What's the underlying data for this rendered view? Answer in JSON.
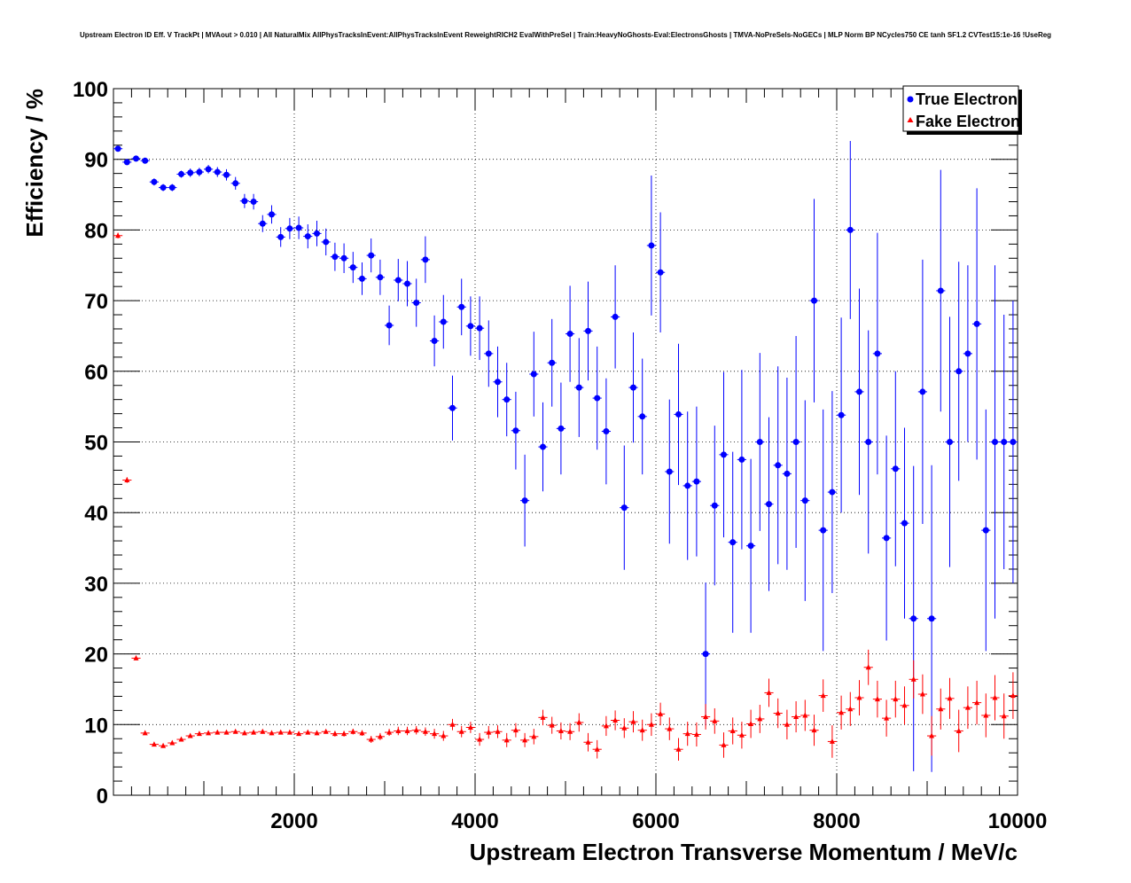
{
  "chart_data": {
    "type": "scatter",
    "title": "Upstream Electron ID Eff. V TrackPt | MVAout > 0.010 | All NaturalMix AllPhysTracksInEvent:AllPhysTracksInEvent ReweightRICH2 EvalWithPreSel | Train:HeavyNoGhosts-Eval:ElectronsGhosts | TMVA-NoPreSels-NoGECs | MLP Norm BP NCycles750 CE tanh SF1.2 CVTest15:1e-16 !UseReg",
    "xlabel": "Upstream Electron Transverse Momentum / MeV/c",
    "ylabel": "Efficiency / %",
    "xlim": [
      0,
      10000
    ],
    "ylim": [
      0,
      100
    ],
    "x_ticks": [
      2000,
      4000,
      6000,
      8000,
      10000
    ],
    "y_ticks": [
      0,
      10,
      20,
      30,
      40,
      50,
      60,
      70,
      80,
      90,
      100
    ],
    "grid": true,
    "legend_position": "top-right",
    "x": [
      50,
      150,
      250,
      350,
      450,
      550,
      650,
      750,
      850,
      950,
      1050,
      1150,
      1250,
      1350,
      1450,
      1550,
      1650,
      1750,
      1850,
      1950,
      2050,
      2150,
      2250,
      2350,
      2450,
      2550,
      2650,
      2750,
      2850,
      2950,
      3050,
      3150,
      3250,
      3350,
      3450,
      3550,
      3650,
      3750,
      3850,
      3950,
      4050,
      4150,
      4250,
      4350,
      4450,
      4550,
      4650,
      4750,
      4850,
      4950,
      5050,
      5150,
      5250,
      5350,
      5450,
      5550,
      5650,
      5750,
      5850,
      5950,
      6050,
      6150,
      6250,
      6350,
      6450,
      6550,
      6650,
      6750,
      6850,
      6950,
      7050,
      7150,
      7250,
      7350,
      7450,
      7550,
      7650,
      7750,
      7850,
      7950,
      8050,
      8150,
      8250,
      8350,
      8450,
      8550,
      8650,
      8750,
      8850,
      8950,
      9050,
      9150,
      9250,
      9350,
      9450,
      9550,
      9650,
      9750,
      9850,
      9950
    ],
    "series": [
      {
        "name": "True Electron",
        "color": "#0000ff",
        "marker": "circle",
        "values": [
          91.5,
          89.6,
          90.1,
          89.8,
          86.8,
          86.0,
          86.0,
          87.9,
          88.1,
          88.2,
          88.6,
          88.2,
          87.8,
          86.6,
          84.1,
          84.0,
          80.9,
          82.2,
          79.0,
          80.2,
          80.3,
          79.1,
          79.5,
          78.3,
          76.2,
          76.0,
          74.7,
          73.1,
          76.4,
          73.3,
          66.5,
          72.9,
          72.4,
          69.7,
          75.8,
          64.3,
          67.0,
          54.8,
          69.1,
          66.4,
          66.1,
          62.5,
          58.5,
          56.0,
          51.6,
          41.7,
          59.6,
          49.3,
          61.2,
          51.9,
          65.3,
          57.7,
          65.7,
          56.2,
          51.5,
          67.7,
          40.7,
          57.7,
          53.6,
          77.8,
          74.0,
          45.8,
          53.9,
          43.8,
          44.4,
          20.0,
          41.0,
          48.2,
          35.8,
          47.5,
          35.3,
          50.0,
          41.2,
          46.7,
          45.5,
          50.0,
          41.7,
          70.0,
          37.5,
          42.9,
          53.8,
          80.0,
          57.1,
          50.0,
          62.5,
          36.4,
          46.2,
          38.5,
          25.0,
          57.1,
          25.0,
          71.4,
          50.0,
          60.0,
          62.5,
          66.7,
          37.5,
          50.0,
          50.0,
          50.0
        ],
        "errors": [
          0.4,
          0.4,
          0.4,
          0.4,
          0.5,
          0.5,
          0.5,
          0.5,
          0.6,
          0.6,
          0.6,
          0.7,
          0.8,
          0.9,
          1.0,
          1.1,
          1.2,
          1.3,
          1.4,
          1.5,
          1.6,
          1.7,
          1.8,
          1.9,
          2.0,
          2.1,
          2.2,
          2.3,
          2.4,
          2.5,
          2.8,
          3.0,
          3.2,
          3.4,
          3.3,
          3.6,
          3.8,
          4.6,
          4.0,
          4.2,
          4.5,
          4.7,
          5.0,
          5.2,
          5.5,
          6.5,
          6.0,
          6.3,
          6.2,
          6.5,
          6.8,
          7.0,
          7.0,
          7.3,
          7.5,
          7.3,
          8.8,
          7.8,
          8.2,
          9.9,
          8.5,
          10.2,
          10.0,
          10.5,
          10.6,
          10.1,
          11.3,
          11.7,
          12.8,
          12.7,
          12.3,
          12.6,
          12.3,
          14.0,
          13.6,
          15.0,
          14.2,
          14.4,
          17.1,
          14.3,
          13.8,
          12.6,
          14.6,
          15.8,
          17.1,
          14.5,
          13.8,
          13.5,
          21.6,
          18.7,
          21.7,
          17.1,
          17.7,
          15.5,
          12.5,
          19.2,
          17.1,
          25.0,
          18.0,
          20.0
        ]
      },
      {
        "name": "Fake Electron",
        "color": "#ff0000",
        "marker": "triangle",
        "values": [
          79.2,
          44.6,
          19.4,
          8.8,
          7.2,
          7.0,
          7.4,
          7.9,
          8.4,
          8.7,
          8.8,
          8.9,
          8.9,
          9.0,
          8.8,
          8.9,
          9.0,
          8.8,
          8.9,
          8.9,
          8.7,
          8.9,
          8.8,
          9.0,
          8.7,
          8.7,
          9.0,
          8.8,
          7.9,
          8.3,
          8.9,
          9.1,
          9.1,
          9.2,
          9.0,
          8.7,
          8.4,
          10.0,
          9.0,
          9.6,
          7.9,
          8.9,
          9.0,
          7.8,
          9.2,
          7.8,
          8.3,
          11.0,
          9.9,
          9.1,
          9.0,
          10.3,
          7.5,
          6.5,
          9.8,
          10.6,
          9.5,
          10.4,
          9.2,
          10.0,
          11.5,
          9.4,
          6.5,
          8.7,
          8.6,
          11.1,
          10.5,
          7.1,
          9.1,
          8.5,
          10.1,
          10.8,
          14.5,
          11.6,
          10.0,
          11.1,
          11.3,
          9.2,
          14.1,
          7.6,
          11.7,
          12.2,
          13.8,
          18.1,
          13.6,
          10.9,
          13.6,
          12.7,
          16.4,
          14.3,
          8.4,
          12.2,
          13.7,
          9.1,
          12.4,
          13.1,
          11.3,
          13.8,
          11.2,
          14.1
        ],
        "errors": [
          0.4,
          0.4,
          0.3,
          0.2,
          0.2,
          0.2,
          0.2,
          0.2,
          0.2,
          0.2,
          0.2,
          0.2,
          0.2,
          0.2,
          0.2,
          0.2,
          0.3,
          0.3,
          0.3,
          0.3,
          0.3,
          0.3,
          0.3,
          0.3,
          0.4,
          0.4,
          0.4,
          0.4,
          0.5,
          0.5,
          0.5,
          0.6,
          0.6,
          0.6,
          0.6,
          0.7,
          0.7,
          0.8,
          0.8,
          0.8,
          0.9,
          0.9,
          0.9,
          1.0,
          1.0,
          1.0,
          1.1,
          1.1,
          1.2,
          1.2,
          1.2,
          1.3,
          1.3,
          1.3,
          1.4,
          1.4,
          1.4,
          1.5,
          1.5,
          1.6,
          1.6,
          1.6,
          1.6,
          1.7,
          1.7,
          1.8,
          1.8,
          1.8,
          1.9,
          1.9,
          2.0,
          2.0,
          2.0,
          2.1,
          2.1,
          2.2,
          2.2,
          2.2,
          2.3,
          2.3,
          2.4,
          2.4,
          2.5,
          2.5,
          2.6,
          2.6,
          2.6,
          2.7,
          2.7,
          2.8,
          2.8,
          2.9,
          2.9,
          3.0,
          3.0,
          3.1,
          3.1,
          3.2,
          3.2,
          3.3
        ]
      }
    ]
  }
}
